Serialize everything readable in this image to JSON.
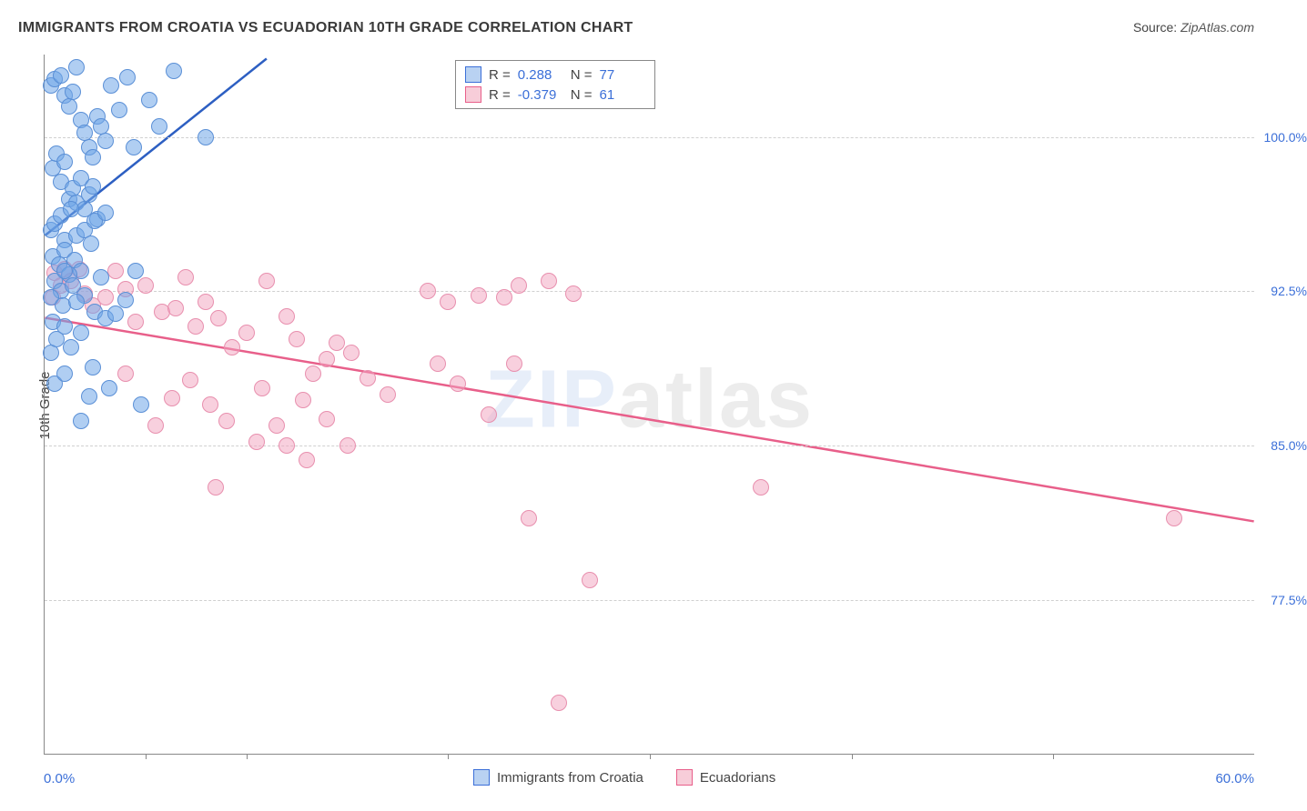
{
  "title": "IMMIGRANTS FROM CROATIA VS ECUADORIAN 10TH GRADE CORRELATION CHART",
  "source_label": "Source:",
  "source_value": "ZipAtlas.com",
  "watermark_main": "ZIP",
  "watermark_tail": "atlas",
  "y_axis_title": "10th Grade",
  "x_axis": {
    "min": 0.0,
    "max": 60.0,
    "label_min": "0.0%",
    "label_max": "60.0%",
    "ticks": [
      5,
      10,
      20,
      30,
      40,
      50
    ]
  },
  "y_axis": {
    "min": 70.0,
    "max": 104.0,
    "ticks": [
      {
        "v": 77.5,
        "label": "77.5%"
      },
      {
        "v": 85.0,
        "label": "85.0%"
      },
      {
        "v": 92.5,
        "label": "92.5%"
      },
      {
        "v": 100.0,
        "label": "100.0%"
      }
    ]
  },
  "legend_top": {
    "rows": [
      {
        "swatch_fill": "#b9d2f2",
        "swatch_stroke": "#3b6fd8",
        "r_label": "R =",
        "r_value": "0.288",
        "n_label": "N =",
        "n_value": "77"
      },
      {
        "swatch_fill": "#f7cdd9",
        "swatch_stroke": "#e85f8a",
        "r_label": "R =",
        "r_value": "-0.379",
        "n_label": "N =",
        "n_value": "61"
      }
    ]
  },
  "legend_bottom": {
    "items": [
      {
        "swatch_fill": "#b9d2f2",
        "swatch_stroke": "#3b6fd8",
        "label": "Immigrants from Croatia"
      },
      {
        "swatch_fill": "#f7cdd9",
        "swatch_stroke": "#e85f8a",
        "label": "Ecuadorians"
      }
    ]
  },
  "series": {
    "croatia": {
      "color_fill": "rgba(112,165,231,0.55)",
      "color_stroke": "#5a8fd6",
      "marker_radius": 9,
      "trend": {
        "x1": 0.0,
        "y1": 95.2,
        "x2": 11.0,
        "y2": 103.8,
        "color": "#2d5fc2",
        "width": 2.5
      },
      "points": [
        [
          0.3,
          102.5
        ],
        [
          0.5,
          102.8
        ],
        [
          0.8,
          103.0
        ],
        [
          1.0,
          102.0
        ],
        [
          1.2,
          101.5
        ],
        [
          1.4,
          102.2
        ],
        [
          1.6,
          103.4
        ],
        [
          1.8,
          100.8
        ],
        [
          2.0,
          100.2
        ],
        [
          2.2,
          99.5
        ],
        [
          2.4,
          99.0
        ],
        [
          2.6,
          101.0
        ],
        [
          2.8,
          100.5
        ],
        [
          3.0,
          99.8
        ],
        [
          0.4,
          98.5
        ],
        [
          0.6,
          99.2
        ],
        [
          0.8,
          97.8
        ],
        [
          1.0,
          98.8
        ],
        [
          1.2,
          97.0
        ],
        [
          1.4,
          97.5
        ],
        [
          1.6,
          96.8
        ],
        [
          1.8,
          98.0
        ],
        [
          2.0,
          96.5
        ],
        [
          2.2,
          97.2
        ],
        [
          2.4,
          97.6
        ],
        [
          2.6,
          96.0
        ],
        [
          0.3,
          95.5
        ],
        [
          0.5,
          95.8
        ],
        [
          0.8,
          96.2
        ],
        [
          1.0,
          95.0
        ],
        [
          1.3,
          96.5
        ],
        [
          1.6,
          95.2
        ],
        [
          2.0,
          95.5
        ],
        [
          2.5,
          95.9
        ],
        [
          3.0,
          96.3
        ],
        [
          3.3,
          102.5
        ],
        [
          3.7,
          101.3
        ],
        [
          4.1,
          102.9
        ],
        [
          4.4,
          99.5
        ],
        [
          5.2,
          101.8
        ],
        [
          5.7,
          100.5
        ],
        [
          6.4,
          103.2
        ],
        [
          8.0,
          100.0
        ],
        [
          0.4,
          94.2
        ],
        [
          0.7,
          93.8
        ],
        [
          1.0,
          94.5
        ],
        [
          1.5,
          94.0
        ],
        [
          1.8,
          93.5
        ],
        [
          2.3,
          94.8
        ],
        [
          2.8,
          93.2
        ],
        [
          0.5,
          93.0
        ],
        [
          0.8,
          92.5
        ],
        [
          1.2,
          93.3
        ],
        [
          0.3,
          92.2
        ],
        [
          0.9,
          91.8
        ],
        [
          1.4,
          92.8
        ],
        [
          2.0,
          92.3
        ],
        [
          2.5,
          91.5
        ],
        [
          0.4,
          91.0
        ],
        [
          1.0,
          93.5
        ],
        [
          1.6,
          92.0
        ],
        [
          4.5,
          93.5
        ],
        [
          0.3,
          89.5
        ],
        [
          0.6,
          90.2
        ],
        [
          1.0,
          90.8
        ],
        [
          1.3,
          89.8
        ],
        [
          1.8,
          90.5
        ],
        [
          2.4,
          88.8
        ],
        [
          3.0,
          91.2
        ],
        [
          3.5,
          91.4
        ],
        [
          4.0,
          92.1
        ],
        [
          0.5,
          88.0
        ],
        [
          1.0,
          88.5
        ],
        [
          1.8,
          86.2
        ],
        [
          2.2,
          87.4
        ],
        [
          3.2,
          87.8
        ],
        [
          4.8,
          87.0
        ]
      ]
    },
    "ecuadorians": {
      "color_fill": "rgba(241,162,189,0.5)",
      "color_stroke": "#e88fae",
      "marker_radius": 9,
      "trend": {
        "x1": 0.0,
        "y1": 91.2,
        "x2": 60.0,
        "y2": 81.3,
        "color": "#e85f8a",
        "width": 2.5
      },
      "points": [
        [
          0.5,
          93.4
        ],
        [
          1.0,
          93.6
        ],
        [
          0.8,
          92.8
        ],
        [
          1.3,
          93.0
        ],
        [
          0.4,
          92.2
        ],
        [
          1.7,
          93.6
        ],
        [
          2.0,
          92.4
        ],
        [
          2.4,
          91.8
        ],
        [
          3.0,
          92.2
        ],
        [
          3.5,
          93.5
        ],
        [
          4.0,
          92.6
        ],
        [
          4.5,
          91.0
        ],
        [
          5.0,
          92.8
        ],
        [
          5.8,
          91.5
        ],
        [
          6.5,
          91.7
        ],
        [
          7.0,
          93.2
        ],
        [
          7.5,
          90.8
        ],
        [
          8.0,
          92.0
        ],
        [
          8.6,
          91.2
        ],
        [
          9.3,
          89.8
        ],
        [
          10.0,
          90.5
        ],
        [
          11.0,
          93.0
        ],
        [
          12.0,
          91.3
        ],
        [
          12.5,
          90.2
        ],
        [
          13.3,
          88.5
        ],
        [
          14.0,
          89.2
        ],
        [
          14.5,
          90.0
        ],
        [
          15.2,
          89.5
        ],
        [
          16.0,
          88.3
        ],
        [
          17.0,
          87.5
        ],
        [
          19.0,
          92.5
        ],
        [
          19.5,
          89.0
        ],
        [
          20.0,
          92.0
        ],
        [
          20.5,
          88.0
        ],
        [
          21.5,
          92.3
        ],
        [
          22.0,
          86.5
        ],
        [
          22.8,
          92.2
        ],
        [
          23.5,
          92.8
        ],
        [
          25.0,
          93.0
        ],
        [
          26.2,
          92.4
        ],
        [
          23.3,
          89.0
        ],
        [
          24.0,
          81.5
        ],
        [
          27.0,
          78.5
        ],
        [
          25.5,
          72.5
        ],
        [
          8.2,
          87.0
        ],
        [
          9.0,
          86.2
        ],
        [
          10.5,
          85.2
        ],
        [
          10.8,
          87.8
        ],
        [
          11.5,
          86.0
        ],
        [
          12.0,
          85.0
        ],
        [
          12.8,
          87.2
        ],
        [
          8.5,
          83.0
        ],
        [
          13.0,
          84.3
        ],
        [
          14.0,
          86.3
        ],
        [
          15.0,
          85.0
        ],
        [
          5.5,
          86.0
        ],
        [
          6.3,
          87.3
        ],
        [
          7.2,
          88.2
        ],
        [
          4.0,
          88.5
        ],
        [
          35.5,
          83.0
        ],
        [
          56.0,
          81.5
        ]
      ]
    }
  }
}
